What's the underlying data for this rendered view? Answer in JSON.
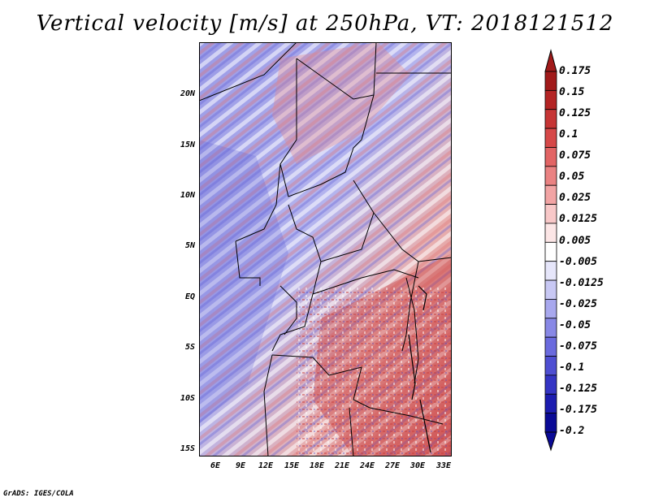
{
  "title": "Vertical velocity [m/s] at 250hPa, VT: 2018121512",
  "y_ticks": [
    "20N",
    "15N",
    "10N",
    "5N",
    "EQ",
    "5S",
    "10S",
    "15S"
  ],
  "x_ticks": [
    "6E",
    "9E",
    "12E",
    "15E",
    "18E",
    "21E",
    "24E",
    "27E",
    "30E",
    "33E"
  ],
  "colorbar": {
    "labels": [
      "0.175",
      "0.15",
      "0.125",
      "0.1",
      "0.075",
      "0.05",
      "0.025",
      "0.0125",
      "0.005",
      "-0.005",
      "-0.0125",
      "-0.025",
      "-0.05",
      "-0.075",
      "-0.1",
      "-0.125",
      "-0.175",
      "-0.2"
    ],
    "colors": [
      "#a11a1a",
      "#b42424",
      "#c63535",
      "#d64848",
      "#e26464",
      "#ea8282",
      "#f2a4a4",
      "#f8c8c8",
      "#fce6e6",
      "#ffffff",
      "#e6e6fa",
      "#c8c8f4",
      "#a8a8ee",
      "#8888e6",
      "#6a6ade",
      "#4e4ed2",
      "#3434c4",
      "#1c1cb0",
      "#0a0a96"
    ]
  },
  "credit": "GrADS: IGES/COLA"
}
